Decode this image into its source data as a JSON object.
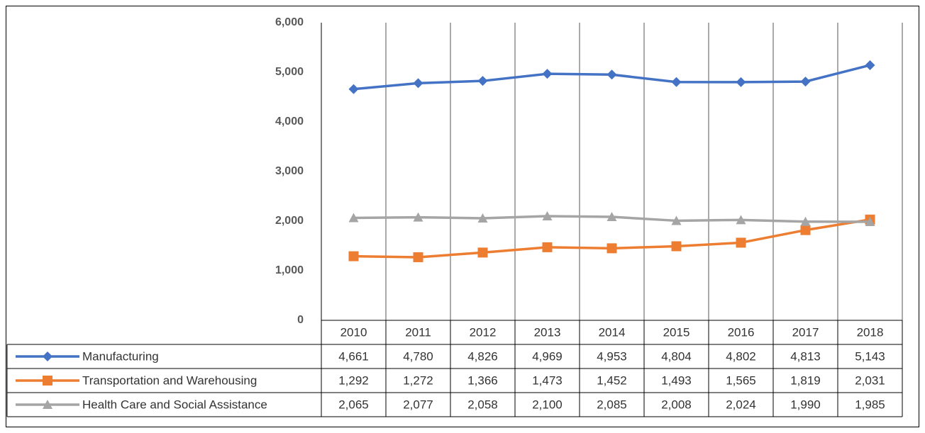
{
  "chart_data": {
    "type": "line",
    "categories": [
      "2010",
      "2011",
      "2012",
      "2013",
      "2014",
      "2015",
      "2016",
      "2017",
      "2018"
    ],
    "ylim": [
      0,
      6000
    ],
    "yticks": [
      0,
      {
        "value": 1000,
        "label": "1,000"
      },
      {
        "value": 2000,
        "label": "2,000"
      },
      {
        "value": 3000,
        "label": "3,000"
      },
      {
        "value": 4000,
        "label": "4,000"
      },
      {
        "value": 5000,
        "label": "5,000"
      },
      {
        "value": 6000,
        "label": "6,000"
      }
    ],
    "series": [
      {
        "name": "Manufacturing",
        "color": "#4472c4",
        "marker": "diamond",
        "values": [
          4661,
          4780,
          4826,
          4969,
          4953,
          4804,
          4802,
          4813,
          5143
        ],
        "value_labels": [
          "4,661",
          "4,780",
          "4,826",
          "4,969",
          "4,953",
          "4,804",
          "4,802",
          "4,813",
          "5,143"
        ]
      },
      {
        "name": "Transportation and Warehousing",
        "color": "#ed7d31",
        "marker": "square",
        "values": [
          1292,
          1272,
          1366,
          1473,
          1452,
          1493,
          1565,
          1819,
          2031
        ],
        "value_labels": [
          "1,292",
          "1,272",
          "1,366",
          "1,473",
          "1,452",
          "1,493",
          "1,565",
          "1,819",
          "2,031"
        ]
      },
      {
        "name": "Health Care and Social Assistance",
        "color": "#a5a5a5",
        "marker": "triangle",
        "values": [
          2065,
          2077,
          2058,
          2100,
          2085,
          2008,
          2024,
          1990,
          1985
        ],
        "value_labels": [
          "2,065",
          "2,077",
          "2,058",
          "2,100",
          "2,085",
          "2,008",
          "2,024",
          "1,990",
          "1,985"
        ]
      }
    ]
  }
}
